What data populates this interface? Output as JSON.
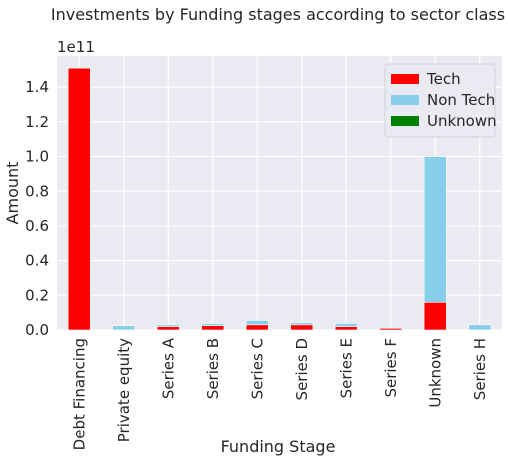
{
  "chart_data": {
    "type": "bar",
    "stacked": true,
    "title": "Investments by Funding stages according to sector class",
    "xlabel": "Funding Stage",
    "ylabel": "Amount",
    "y_offset_text": "1e11",
    "ylim": [
      0,
      1.58
    ],
    "yticks": [
      "0.0",
      "0.2",
      "0.4",
      "0.6",
      "0.8",
      "1.0",
      "1.2",
      "1.4"
    ],
    "ytick_values": [
      0,
      0.2,
      0.4,
      0.6,
      0.8,
      1.0,
      1.2,
      1.4
    ],
    "grid": true,
    "legend_position": "top-right",
    "categories": [
      "Debt Financing",
      "Private equity",
      "Series A",
      "Series B",
      "Series C",
      "Series D",
      "Series E",
      "Series F",
      "Unknown",
      "Series H"
    ],
    "series": [
      {
        "name": "Tech",
        "color": "#ff0000",
        "values": [
          1.51,
          0.0,
          0.02,
          0.025,
          0.03,
          0.03,
          0.02,
          0.01,
          0.16,
          0.0
        ]
      },
      {
        "name": "Non Tech",
        "color": "#87ceeb",
        "values": [
          0.0,
          0.025,
          0.01,
          0.012,
          0.025,
          0.012,
          0.018,
          0.005,
          0.84,
          0.03
        ]
      },
      {
        "name": "Unknown",
        "color": "#008000",
        "values": [
          0,
          0,
          0,
          0,
          0,
          0,
          0,
          0,
          0,
          0
        ]
      }
    ]
  }
}
